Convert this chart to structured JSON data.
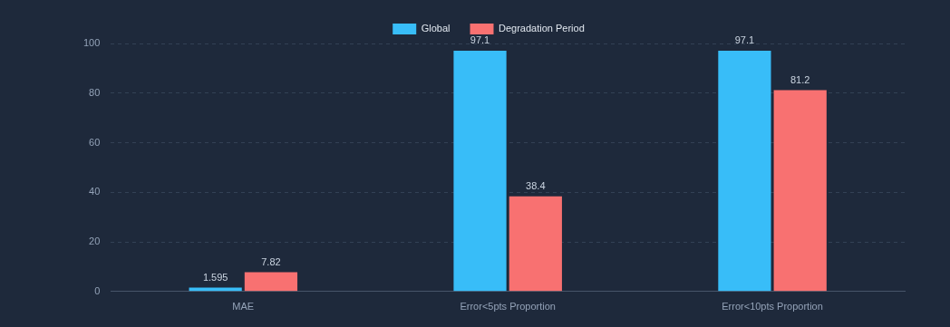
{
  "chart_data": {
    "type": "bar",
    "categories": [
      "MAE",
      "Error<5pts Proportion",
      "Error<10pts Proportion"
    ],
    "series": [
      {
        "name": "Global",
        "color": "#38bdf8",
        "values": [
          1.595,
          97.1,
          97.1
        ]
      },
      {
        "name": "Degradation Period",
        "color": "#f87171",
        "values": [
          7.82,
          38.4,
          81.2
        ]
      }
    ],
    "ylim": [
      0,
      100
    ],
    "yticks": [
      0,
      20,
      40,
      60,
      80,
      100
    ],
    "grid": "y",
    "legend": "top",
    "data_labels": true
  }
}
